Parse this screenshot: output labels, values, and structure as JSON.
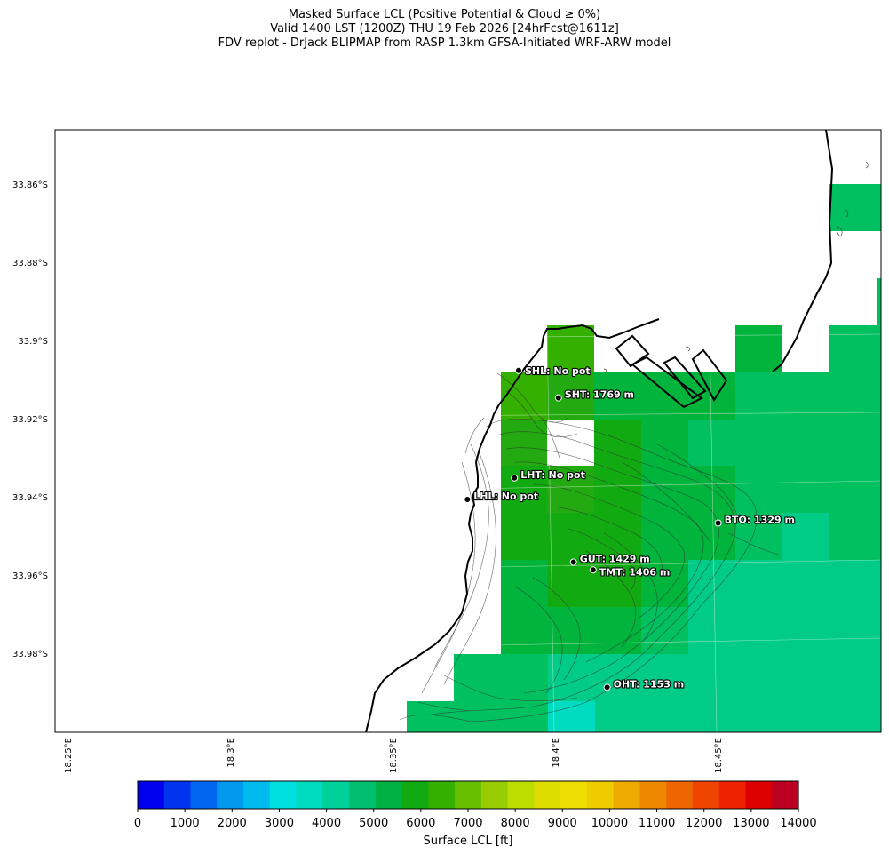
{
  "title": {
    "line1": "Masked Surface LCL (Positive Potential & Cloud ≥ 0%)",
    "line2": "Valid 1400 LST (1200Z) THU 19 Feb 2026 [24hrFcst@1611z]",
    "line3": "FDV replot - DrJack BLIPMAP from RASP 1.3km GFSA-Initiated WRF-ARW model"
  },
  "map": {
    "lat_labels": [
      "33.86°S",
      "33.88°S",
      "33.9°S",
      "33.92°S",
      "33.94°S",
      "33.96°S",
      "33.98°S"
    ],
    "lon_labels": [
      "18.25°E",
      "18.3°E",
      "18.35°E",
      "18.4°E",
      "18.45°E"
    ],
    "lat_range": [
      33.8465,
      34.0005
    ],
    "lon_range": [
      18.2485,
      18.5015
    ],
    "stations": [
      {
        "code": "SHL",
        "label": "SHL: No pot",
        "lat": 33.908,
        "lon": 18.3905
      },
      {
        "code": "SHT",
        "label": "SHT: 1769 m",
        "lat": 33.915,
        "lon": 18.4027
      },
      {
        "code": "LHT",
        "label": "LHT: No pot",
        "lat": 33.9355,
        "lon": 18.3892
      },
      {
        "code": "LHL",
        "label": "LHL: No pot",
        "lat": 33.941,
        "lon": 18.3748
      },
      {
        "code": "BTO",
        "label": "BTO: 1329 m",
        "lat": 33.947,
        "lon": 18.4516
      },
      {
        "code": "GUT",
        "label": "GUT: 1429 m",
        "lat": 33.957,
        "lon": 18.4073
      },
      {
        "code": "TMT",
        "label": "TMT: 1406 m",
        "lat": 33.959,
        "lon": 18.4133
      },
      {
        "code": "OHT",
        "label": "OHT: 1153 m",
        "lat": 33.989,
        "lon": 18.4176
      }
    ]
  },
  "colorbar": {
    "title": "Surface LCL [ft]",
    "ticks": [
      "0",
      "1000",
      "2000",
      "3000",
      "4000",
      "5000",
      "6000",
      "7000",
      "8000",
      "9000",
      "10000",
      "11000",
      "12000",
      "13000",
      "14000"
    ],
    "colors": [
      "#0000ee",
      "#0033ee",
      "#0066ee",
      "#0099ee",
      "#00bbee",
      "#00e0e0",
      "#00dcc0",
      "#00d09a",
      "#00c070",
      "#00b040",
      "#11aa11",
      "#33b000",
      "#66c000",
      "#99cc00",
      "#bbdd00",
      "#dddd00",
      "#eedd00",
      "#eecc00",
      "#eeaa00",
      "#ee8800",
      "#ee6600",
      "#ee4400",
      "#ee2200",
      "#dd0000",
      "#bb0022"
    ]
  }
}
